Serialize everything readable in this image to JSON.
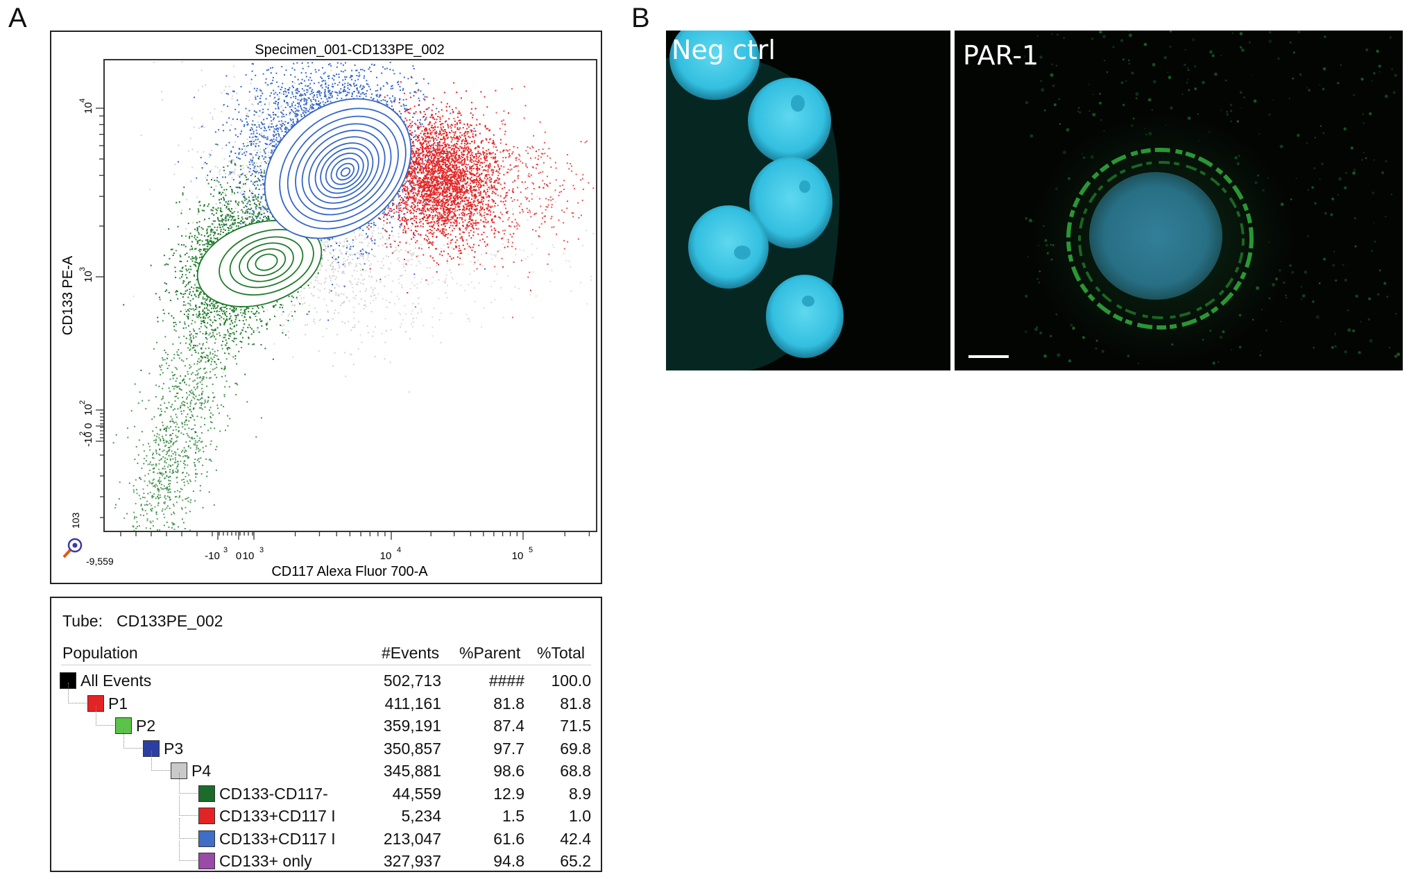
{
  "panels": {
    "a_letter": "A",
    "b_letter": "B"
  },
  "plot": {
    "title": "Specimen_001-CD133PE_002",
    "xlabel": "CD117 Alexa Fluor 700-A",
    "ylabel": "CD133 PE-A",
    "x_corner_label": "-9,559",
    "y_corner_label": "103",
    "x_ticks": [
      "-10",
      "0",
      "10",
      "10",
      "10"
    ],
    "x_tick_exps": [
      "3",
      "",
      "3",
      "4",
      "5"
    ],
    "y_ticks": [
      "10",
      "10",
      "10",
      "-10"
    ],
    "y_tick_exps": [
      "4",
      "3",
      "2",
      "2"
    ],
    "y_zero": "0",
    "colors": {
      "green": "#1e7a2a",
      "blue": "#3566c8",
      "red": "#e42424",
      "gray": "#c8c8c8"
    }
  },
  "table": {
    "tube_label": "Tube:",
    "tube_value": "CD133PE_002",
    "headers": [
      "Population",
      "#Events",
      "%Parent",
      "%Total"
    ],
    "rows": [
      {
        "name": "All Events",
        "events": "502,713",
        "parent": "####",
        "total": "100.0",
        "color": "#000000",
        "level": 0
      },
      {
        "name": "P1",
        "events": "411,161",
        "parent": "81.8",
        "total": "81.8",
        "color": "#e32424",
        "level": 1
      },
      {
        "name": "P2",
        "events": "359,191",
        "parent": "87.4",
        "total": "71.5",
        "color": "#5bc24a",
        "level": 2
      },
      {
        "name": "P3",
        "events": "350,857",
        "parent": "97.7",
        "total": "69.8",
        "color": "#2b3fa3",
        "level": 3
      },
      {
        "name": "P4",
        "events": "345,881",
        "parent": "98.6",
        "total": "68.8",
        "color": "#c9c9c9",
        "level": 4
      },
      {
        "name": "CD133-CD117-",
        "events": "44,559",
        "parent": "12.9",
        "total": "8.9",
        "color": "#1c6b2a",
        "level": 5
      },
      {
        "name": "CD133+CD117 I",
        "events": "5,234",
        "parent": "1.5",
        "total": "1.0",
        "color": "#e32424",
        "level": 5
      },
      {
        "name": "CD133+CD117 I",
        "events": "213,047",
        "parent": "61.6",
        "total": "42.4",
        "color": "#3e6ec8",
        "level": 5
      },
      {
        "name": "CD133+ only",
        "events": "327,937",
        "parent": "94.8",
        "total": "65.2",
        "color": "#9a4aa8",
        "level": 5
      }
    ]
  },
  "micrographs": {
    "left_label": "Neg ctrl",
    "right_label": "PAR-1"
  }
}
